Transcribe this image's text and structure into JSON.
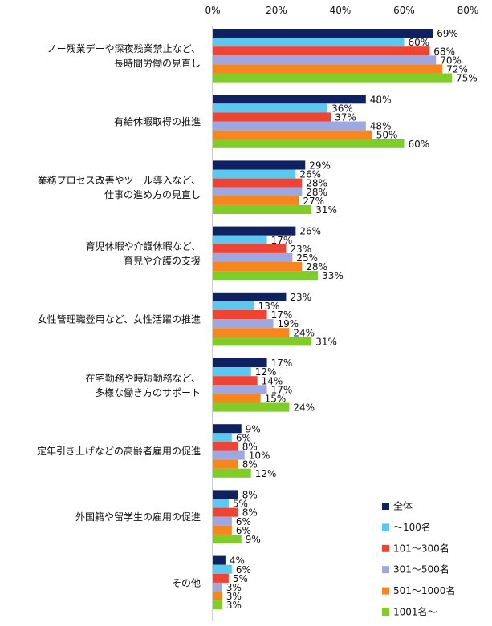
{
  "chart_data": {
    "type": "bar",
    "orientation": "horizontal",
    "title": "",
    "xlabel": "",
    "ylabel": "",
    "xlim": [
      0,
      80
    ],
    "x_ticks": [
      "0%",
      "20%",
      "40%",
      "60%",
      "80%"
    ],
    "x_tick_values": [
      0,
      20,
      40,
      60,
      80
    ],
    "grid": false,
    "legend_position": "bottom-right",
    "value_suffix": "%",
    "categories": [
      [
        "ノー残業デーや深夜残業禁止など、",
        "長時間労働の見直し"
      ],
      [
        "有給休暇取得の推進"
      ],
      [
        "業務プロセス改善やツール導入など、",
        "仕事の進め方の見直し"
      ],
      [
        "育児休暇や介護休暇など、",
        "育児や介護の支援"
      ],
      [
        "女性管理職登用など、女性活躍の推進"
      ],
      [
        "在宅勤務や時短勤務など、",
        "多様な働き方のサポート"
      ],
      [
        "定年引き上げなどの高齢者雇用の促進"
      ],
      [
        "外国籍や留学生の雇用の促進"
      ],
      [
        "その他"
      ]
    ],
    "series": [
      {
        "name": "全体",
        "color": "#0f2160",
        "values": [
          69,
          48,
          29,
          26,
          23,
          17,
          9,
          8,
          4
        ]
      },
      {
        "name": "～100名",
        "color": "#5bc8ef",
        "values": [
          60,
          36,
          26,
          17,
          13,
          12,
          6,
          5,
          6
        ]
      },
      {
        "name": "101～300名",
        "color": "#ef4433",
        "values": [
          68,
          37,
          28,
          23,
          17,
          14,
          8,
          8,
          5
        ]
      },
      {
        "name": "301～500名",
        "color": "#9da7e2",
        "values": [
          70,
          48,
          28,
          25,
          19,
          17,
          10,
          6,
          3
        ]
      },
      {
        "name": "501～1000名",
        "color": "#f7861f",
        "values": [
          72,
          50,
          27,
          28,
          24,
          15,
          8,
          6,
          3
        ]
      },
      {
        "name": "1001名～",
        "color": "#80cc28",
        "values": [
          75,
          60,
          31,
          33,
          31,
          24,
          12,
          9,
          3
        ]
      }
    ]
  }
}
